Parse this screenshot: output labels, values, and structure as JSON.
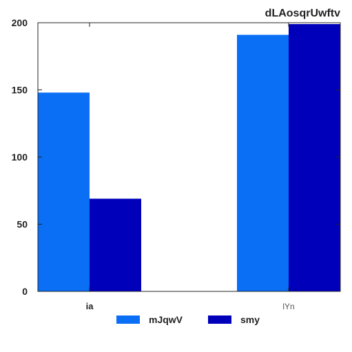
{
  "chart_data": {
    "type": "bar",
    "title": "dLAosqrUwftv",
    "xlabel": "",
    "ylabel": "",
    "categories": [
      "ia",
      "lYn"
    ],
    "ylim": [
      0,
      200
    ],
    "yticks": [
      0,
      50,
      100,
      150,
      200
    ],
    "grid": false,
    "legend_position": "bottom",
    "series": [
      {
        "name": "mJqwV",
        "values": [
          148,
          191
        ],
        "color": "#0a6ff5"
      },
      {
        "name": "smy",
        "values": [
          69,
          199
        ],
        "color": "#0000bb"
      }
    ]
  }
}
